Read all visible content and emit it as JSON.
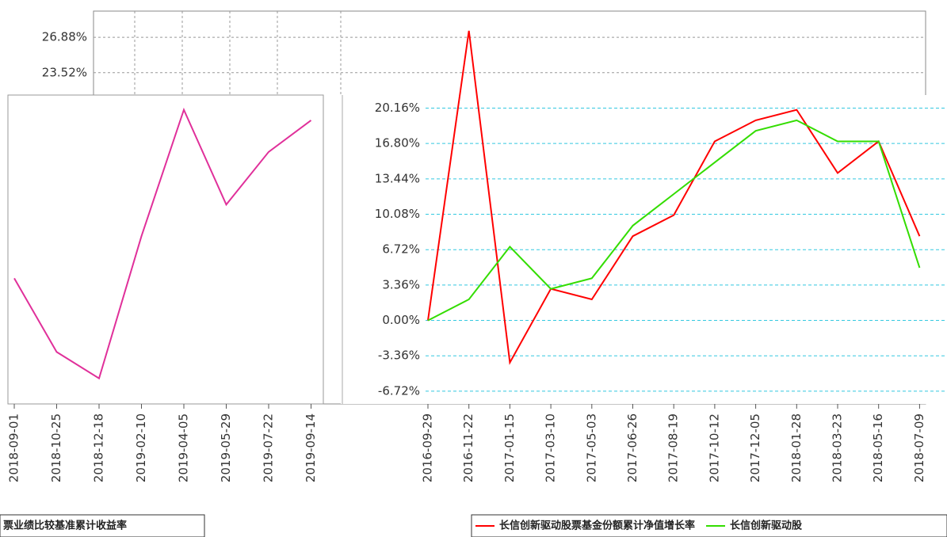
{
  "chart_data": [
    {
      "type": "line",
      "ylim": [
        -7.93,
        29.37
      ],
      "yticks": [
        {
          "value": 26.88,
          "label": "26.88%"
        },
        {
          "value": 23.52,
          "label": "23.52%"
        }
      ],
      "grid": true
    },
    {
      "type": "line",
      "categories": [
        "2018-09-01",
        "2018-10-25",
        "2018-12-18",
        "2019-02-10",
        "2019-04-05",
        "2019-05-29",
        "2019-07-22",
        "2019-09-14"
      ],
      "series": [
        {
          "name": "票业绩比较基准累计收益率",
          "color": "#e0309a",
          "values": [
            4,
            -3,
            -5.5,
            8,
            20,
            11,
            16,
            19
          ]
        }
      ],
      "ylim": [
        -7.93,
        29.37
      ]
    },
    {
      "type": "line",
      "categories": [
        "2016-09-29",
        "2016-11-22",
        "2017-01-15",
        "2017-03-10",
        "2017-05-03",
        "2017-06-26",
        "2017-08-19",
        "2017-10-12",
        "2017-12-05",
        "2018-01-28",
        "2018-03-23",
        "2018-05-16",
        "2018-07-09"
      ],
      "series": [
        {
          "name": "长信创新驱动股票基金份额累计净值增长率",
          "color": "#ff0000",
          "values": [
            0,
            27.5,
            -4,
            3,
            2,
            8,
            10,
            17,
            19,
            20,
            14,
            17,
            8
          ]
        },
        {
          "name": "长信创新驱动股",
          "color": "#33dd00",
          "values": [
            0,
            2,
            7,
            3,
            4,
            9,
            12,
            15,
            18,
            19,
            17,
            17,
            5
          ]
        }
      ],
      "ylim": [
        -7.93,
        29.37
      ],
      "yticks": [
        {
          "value": 20.16,
          "label": "20.16%"
        },
        {
          "value": 16.8,
          "label": "16.80%"
        },
        {
          "value": 13.44,
          "label": "13.44%"
        },
        {
          "value": 10.08,
          "label": "10.08%"
        },
        {
          "value": 6.72,
          "label": "6.72%"
        },
        {
          "value": 3.36,
          "label": "3.36%"
        },
        {
          "value": 0,
          "label": "0.00%"
        },
        {
          "value": -3.36,
          "label": "-3.36%"
        },
        {
          "value": -6.72,
          "label": "-6.72%"
        }
      ],
      "grid": true
    }
  ]
}
